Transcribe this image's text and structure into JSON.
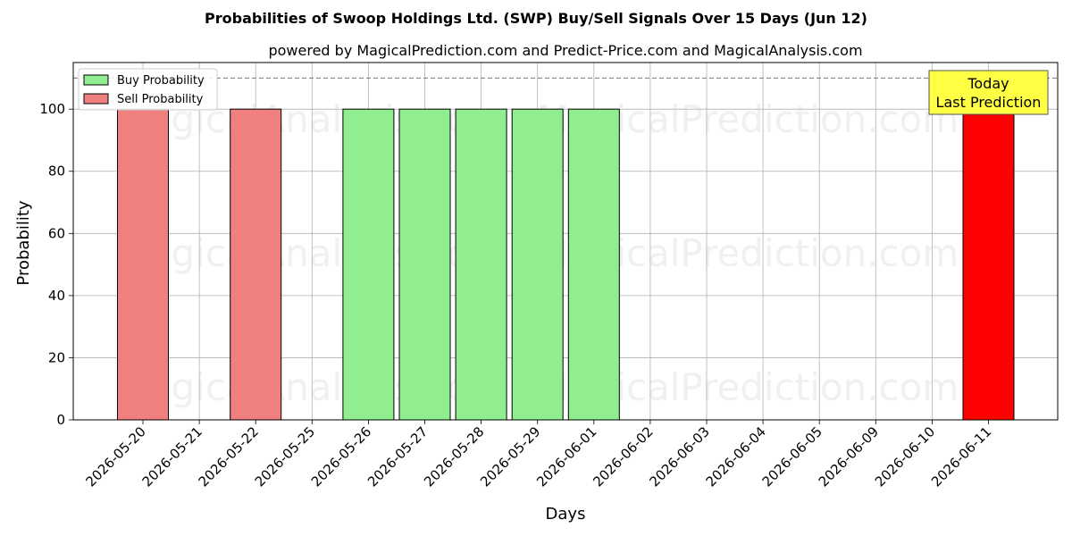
{
  "chart_data": {
    "type": "bar",
    "title": "Probabilities of Swoop Holdings Ltd. (SWP) Buy/Sell Signals Over 15 Days (Jun 12)",
    "subtitle": "powered by MagicalPrediction.com and Predict-Price.com and MagicalAnalysis.com",
    "xlabel": "Days",
    "ylabel": "Probability",
    "ylim": [
      0,
      115
    ],
    "yticks": [
      0,
      20,
      40,
      60,
      80,
      100
    ],
    "reference_line": 110,
    "grid": true,
    "legend_position": "top-left",
    "categories": [
      "2026-05-20",
      "2026-05-21",
      "2026-05-22",
      "2026-05-25",
      "2026-05-26",
      "2026-05-27",
      "2026-05-28",
      "2026-05-29",
      "2026-06-01",
      "2026-06-02",
      "2026-06-03",
      "2026-06-04",
      "2026-06-05",
      "2026-06-09",
      "2026-06-10",
      "2026-06-11"
    ],
    "series": [
      {
        "name": "Buy Probability",
        "color": "#90ee90",
        "points": [
          {
            "category": "2026-05-26",
            "value": 100
          },
          {
            "category": "2026-05-27",
            "value": 100
          },
          {
            "category": "2026-05-28",
            "value": 100
          },
          {
            "category": "2026-05-29",
            "value": 100
          },
          {
            "category": "2026-06-01",
            "value": 100
          }
        ]
      },
      {
        "name": "Sell Probability",
        "color": "#f08080",
        "points": [
          {
            "category": "2026-05-20",
            "value": 100
          },
          {
            "category": "2026-05-22",
            "value": 100
          }
        ]
      }
    ],
    "today_bar": {
      "category": "2026-06-11",
      "value": 100,
      "color": "#ff0000"
    },
    "annotation": {
      "line1": "Today",
      "line2": "Last Prediction",
      "color": "#ffff44"
    },
    "watermarks": [
      "MagicalAnalysis.com",
      "MagicalPrediction.com"
    ]
  }
}
